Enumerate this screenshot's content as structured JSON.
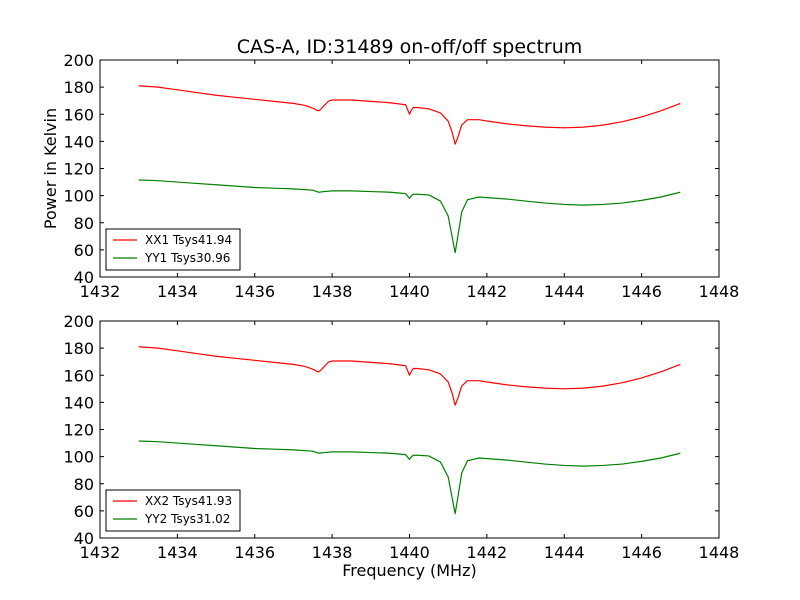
{
  "chart_data": [
    {
      "type": "line",
      "title": "CAS-A, ID:31489 on-off/off spectrum",
      "xlabel": "",
      "ylabel": "Power in Kelvin",
      "xlim": [
        1432,
        1448
      ],
      "ylim": [
        40,
        200
      ],
      "xticks": [
        "1432",
        "1434",
        "1436",
        "1438",
        "1440",
        "1442",
        "1444",
        "1446",
        "1448"
      ],
      "yticks": [
        "40",
        "60",
        "80",
        "100",
        "120",
        "140",
        "160",
        "180",
        "200"
      ],
      "legend_position": "lower-left",
      "grid": false,
      "series": [
        {
          "name": "XX1 Tsys41.94",
          "color": "#ff0000",
          "x": [
            1433.0,
            1433.5,
            1434.0,
            1434.5,
            1435.0,
            1435.5,
            1436.0,
            1436.5,
            1437.0,
            1437.3,
            1437.5,
            1437.6,
            1437.65,
            1437.7,
            1437.8,
            1437.9,
            1438.0,
            1438.5,
            1439.0,
            1439.5,
            1439.9,
            1440.0,
            1440.05,
            1440.1,
            1440.2,
            1440.5,
            1440.8,
            1441.0,
            1441.1,
            1441.18,
            1441.25,
            1441.35,
            1441.5,
            1441.8,
            1442.0,
            1442.5,
            1443.0,
            1443.5,
            1444.0,
            1444.5,
            1445.0,
            1445.5,
            1446.0,
            1446.5,
            1447.0
          ],
          "y": [
            181,
            180,
            178,
            176,
            174,
            172.5,
            171,
            169.5,
            168,
            166.5,
            164.5,
            163,
            162.5,
            163.5,
            166.5,
            169.5,
            170.5,
            170.5,
            169.5,
            168.5,
            167,
            160,
            163,
            165,
            165,
            164,
            161,
            155,
            147,
            138,
            143,
            152,
            156,
            156,
            155,
            153,
            151.5,
            150.5,
            150,
            150.5,
            152,
            154.5,
            158,
            162.5,
            168
          ]
        },
        {
          "name": "YY1 Tsys30.96",
          "color": "#008000",
          "x": [
            1433.0,
            1433.5,
            1434.0,
            1434.5,
            1435.0,
            1435.5,
            1436.0,
            1436.5,
            1437.0,
            1437.5,
            1437.65,
            1437.8,
            1438.0,
            1438.5,
            1439.0,
            1439.5,
            1439.9,
            1440.0,
            1440.05,
            1440.1,
            1440.2,
            1440.5,
            1440.8,
            1441.0,
            1441.1,
            1441.18,
            1441.25,
            1441.35,
            1441.5,
            1441.8,
            1442.0,
            1442.5,
            1443.0,
            1443.5,
            1444.0,
            1444.5,
            1445.0,
            1445.5,
            1446.0,
            1446.5,
            1447.0
          ],
          "y": [
            111.5,
            111,
            110,
            109,
            108,
            107,
            106,
            105.5,
            105,
            104,
            102.5,
            103,
            103.5,
            103.5,
            103,
            102.5,
            101.5,
            98,
            100,
            101,
            101,
            100.5,
            96,
            85,
            70,
            58,
            70,
            88,
            97,
            99,
            98.5,
            97.5,
            96,
            94.5,
            93.5,
            93,
            93.5,
            94.5,
            96.5,
            99,
            102.5
          ]
        }
      ]
    },
    {
      "type": "line",
      "title": "",
      "xlabel": "Frequency (MHz)",
      "ylabel": "",
      "xlim": [
        1432,
        1448
      ],
      "ylim": [
        40,
        200
      ],
      "xticks": [
        "1432",
        "1434",
        "1436",
        "1438",
        "1440",
        "1442",
        "1444",
        "1446",
        "1448"
      ],
      "yticks": [
        "40",
        "60",
        "80",
        "100",
        "120",
        "140",
        "160",
        "180",
        "200"
      ],
      "legend_position": "lower-left",
      "grid": false,
      "series": [
        {
          "name": "XX2 Tsys41.93",
          "color": "#ff0000",
          "x": [
            1433.0,
            1433.5,
            1434.0,
            1434.5,
            1435.0,
            1435.5,
            1436.0,
            1436.5,
            1437.0,
            1437.3,
            1437.5,
            1437.6,
            1437.65,
            1437.7,
            1437.8,
            1437.9,
            1438.0,
            1438.5,
            1439.0,
            1439.5,
            1439.9,
            1440.0,
            1440.05,
            1440.1,
            1440.2,
            1440.5,
            1440.8,
            1441.0,
            1441.1,
            1441.18,
            1441.25,
            1441.35,
            1441.5,
            1441.8,
            1442.0,
            1442.5,
            1443.0,
            1443.5,
            1444.0,
            1444.5,
            1445.0,
            1445.5,
            1446.0,
            1446.5,
            1447.0
          ],
          "y": [
            181,
            180,
            178,
            176,
            174,
            172.5,
            171,
            169.5,
            168,
            166.5,
            164.5,
            163,
            162.5,
            163.5,
            166.5,
            169.5,
            170.5,
            170.5,
            169.5,
            168.5,
            167,
            160,
            163,
            165,
            165,
            164,
            161,
            155,
            147,
            138,
            143,
            152,
            156,
            156,
            155,
            153,
            151.5,
            150.5,
            150,
            150.5,
            152,
            154.5,
            158,
            162.5,
            168
          ]
        },
        {
          "name": "YY2 Tsys31.02",
          "color": "#008000",
          "x": [
            1433.0,
            1433.5,
            1434.0,
            1434.5,
            1435.0,
            1435.5,
            1436.0,
            1436.5,
            1437.0,
            1437.5,
            1437.65,
            1437.8,
            1438.0,
            1438.5,
            1439.0,
            1439.5,
            1439.9,
            1440.0,
            1440.05,
            1440.1,
            1440.2,
            1440.5,
            1440.8,
            1441.0,
            1441.1,
            1441.18,
            1441.25,
            1441.35,
            1441.5,
            1441.8,
            1442.0,
            1442.5,
            1443.0,
            1443.5,
            1444.0,
            1444.5,
            1445.0,
            1445.5,
            1446.0,
            1446.5,
            1447.0
          ],
          "y": [
            111.5,
            111,
            110,
            109,
            108,
            107,
            106,
            105.5,
            105,
            104,
            102.5,
            103,
            103.5,
            103.5,
            103,
            102.5,
            101.5,
            98,
            100,
            101,
            101,
            100.5,
            96,
            85,
            70,
            58,
            70,
            88,
            97,
            99,
            98.5,
            97.5,
            96,
            94.5,
            93.5,
            93,
            93.5,
            94.5,
            96.5,
            99,
            102.5
          ]
        }
      ]
    }
  ]
}
